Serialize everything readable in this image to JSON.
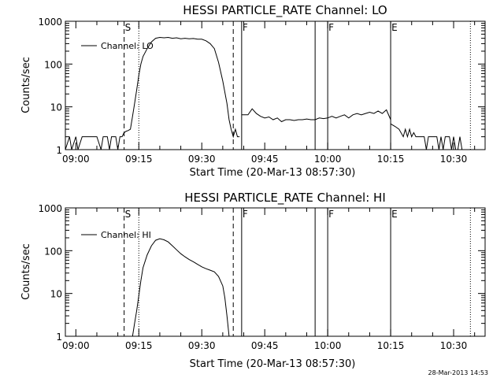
{
  "footer": {
    "timestamp": "28-Mar-2013 14:53"
  },
  "chart_data": [
    {
      "type": "line",
      "title": "HESSI PARTICLE_RATE Channel: LO",
      "xlabel": "Start Time (20-Mar-13 08:57:30)",
      "ylabel": "Counts/sec",
      "y_scale": "log",
      "ylim": [
        1,
        1000
      ],
      "xlim": [
        "08:57:30",
        "10:37:30"
      ],
      "x_tick_labels": [
        "09:00",
        "09:15",
        "09:30",
        "09:45",
        "10:00",
        "10:15",
        "10:30"
      ],
      "y_tick_labels": [
        "1",
        "10",
        "100",
        "1000"
      ],
      "legend": {
        "position": "top-left",
        "entries": [
          "Channel: LO"
        ]
      },
      "markers": [
        {
          "label": "S",
          "time": "09:11:30",
          "style": "dashed"
        },
        {
          "label": "",
          "time": "09:15:00",
          "style": "dotted"
        },
        {
          "label": "",
          "time": "09:37:30",
          "style": "dashed"
        },
        {
          "label": "F",
          "time": "09:39:30",
          "style": "solid"
        },
        {
          "label": "",
          "time": "09:57:00",
          "style": "solid"
        },
        {
          "label": "F",
          "time": "10:00:00",
          "style": "solid"
        },
        {
          "label": "E",
          "time": "10:15:00",
          "style": "solid"
        },
        {
          "label": "",
          "time": "10:34:00",
          "style": "dotted"
        }
      ],
      "series": [
        {
          "name": "Channel: LO",
          "segments": [
            [
              [
                "08:57:30",
                1
              ],
              [
                "08:58:30",
                2
              ],
              [
                "08:59:00",
                1
              ],
              [
                "09:00:00",
                2
              ],
              [
                "09:00:30",
                1
              ],
              [
                "09:01:30",
                2
              ],
              [
                "09:02:00",
                2
              ],
              [
                "09:03:00",
                2
              ],
              [
                "09:04:00",
                2
              ],
              [
                "09:05:00",
                2
              ],
              [
                "09:06:00",
                1
              ],
              [
                "09:06:30",
                2
              ],
              [
                "09:07:30",
                2
              ],
              [
                "09:08:00",
                1
              ],
              [
                "09:08:30",
                2
              ],
              [
                "09:09:30",
                2
              ],
              [
                "09:10:00",
                1
              ],
              [
                "09:10:30",
                2
              ],
              [
                "09:11:00",
                2
              ],
              [
                "09:11:30",
                2.5
              ],
              [
                "09:12:00",
                2.7
              ],
              [
                "09:12:30",
                2.8
              ],
              [
                "09:13:00",
                3
              ],
              [
                "09:13:30",
                6
              ],
              [
                "09:14:00",
                12
              ],
              [
                "09:14:30",
                25
              ],
              [
                "09:15:00",
                55
              ],
              [
                "09:15:30",
                100
              ],
              [
                "09:16:00",
                150
              ],
              [
                "09:17:00",
                230
              ],
              [
                "09:18:00",
                330
              ],
              [
                "09:19:00",
                400
              ],
              [
                "09:20:00",
                420
              ],
              [
                "09:21:00",
                410
              ],
              [
                "09:22:00",
                420
              ],
              [
                "09:23:00",
                400
              ],
              [
                "09:24:00",
                410
              ],
              [
                "09:25:00",
                390
              ],
              [
                "09:26:00",
                400
              ],
              [
                "09:27:00",
                390
              ],
              [
                "09:28:00",
                395
              ],
              [
                "09:29:00",
                380
              ],
              [
                "09:30:00",
                380
              ],
              [
                "09:31:00",
                350
              ],
              [
                "09:32:00",
                300
              ],
              [
                "09:33:00",
                230
              ],
              [
                "09:34:00",
                110
              ],
              [
                "09:35:00",
                40
              ],
              [
                "09:36:00",
                12
              ],
              [
                "09:36:30",
                5
              ],
              [
                "09:37:00",
                3
              ],
              [
                "09:37:30",
                2
              ],
              [
                "09:38:00",
                3
              ],
              [
                "09:38:30",
                2
              ],
              [
                "09:39:00",
                2
              ]
            ],
            [
              [
                "09:39:30",
                6.5
              ],
              [
                "09:41:00",
                6.5
              ],
              [
                "09:42:00",
                9
              ],
              [
                "09:43:00",
                7
              ],
              [
                "09:44:00",
                6
              ],
              [
                "09:45:00",
                5.5
              ],
              [
                "09:46:00",
                5.8
              ],
              [
                "09:47:00",
                5
              ],
              [
                "09:48:00",
                5.5
              ],
              [
                "09:49:00",
                4.5
              ],
              [
                "09:50:00",
                5
              ],
              [
                "09:51:00",
                5
              ],
              [
                "09:52:00",
                4.8
              ],
              [
                "09:53:00",
                5
              ],
              [
                "09:54:00",
                5
              ],
              [
                "09:55:00",
                5.2
              ],
              [
                "09:56:00",
                5
              ],
              [
                "09:57:00",
                5
              ],
              [
                "09:58:00",
                5.5
              ],
              [
                "09:59:00",
                5.3
              ],
              [
                "10:00:00",
                5.5
              ],
              [
                "10:01:00",
                6
              ],
              [
                "10:02:00",
                5.5
              ],
              [
                "10:03:00",
                6
              ],
              [
                "10:04:00",
                6.5
              ],
              [
                "10:05:00",
                5.5
              ],
              [
                "10:06:00",
                6.5
              ],
              [
                "10:07:00",
                7
              ],
              [
                "10:08:00",
                6.5
              ],
              [
                "10:09:00",
                7
              ],
              [
                "10:10:00",
                7.5
              ],
              [
                "10:11:00",
                7
              ],
              [
                "10:12:00",
                8
              ],
              [
                "10:13:00",
                7
              ],
              [
                "10:14:00",
                8.5
              ],
              [
                "10:15:00",
                5
              ]
            ],
            [
              [
                "10:15:00",
                4
              ],
              [
                "10:16:00",
                3.5
              ],
              [
                "10:17:00",
                3
              ],
              [
                "10:18:00",
                2
              ],
              [
                "10:18:30",
                3
              ],
              [
                "10:19:00",
                2
              ],
              [
                "10:19:30",
                3
              ],
              [
                "10:20:00",
                2
              ],
              [
                "10:20:30",
                2.5
              ],
              [
                "10:21:00",
                2
              ],
              [
                "10:22:00",
                2
              ],
              [
                "10:23:00",
                2
              ],
              [
                "10:23:30",
                1
              ],
              [
                "10:24:00",
                2
              ],
              [
                "10:25:00",
                2
              ],
              [
                "10:26:00",
                2
              ],
              [
                "10:26:30",
                1
              ],
              [
                "10:27:00",
                2
              ],
              [
                "10:27:30",
                1
              ],
              [
                "10:28:00",
                2
              ],
              [
                "10:29:00",
                2
              ],
              [
                "10:29:30",
                1
              ],
              [
                "10:30:00",
                2
              ],
              [
                "10:30:30",
                1
              ],
              [
                "10:31:00",
                1
              ],
              [
                "10:31:30",
                2
              ],
              [
                "10:32:00",
                1
              ],
              [
                "10:33:00",
                1
              ]
            ]
          ]
        }
      ]
    },
    {
      "type": "line",
      "title": "HESSI PARTICLE_RATE Channel: HI",
      "xlabel": "Start Time (20-Mar-13 08:57:30)",
      "ylabel": "Counts/sec",
      "y_scale": "log",
      "ylim": [
        1,
        1000
      ],
      "xlim": [
        "08:57:30",
        "10:37:30"
      ],
      "x_tick_labels": [
        "09:00",
        "09:15",
        "09:30",
        "09:45",
        "10:00",
        "10:15",
        "10:30"
      ],
      "y_tick_labels": [
        "1",
        "10",
        "100",
        "1000"
      ],
      "legend": {
        "position": "top-left",
        "entries": [
          "Channel: HI"
        ]
      },
      "markers": [
        {
          "label": "S",
          "time": "09:11:30",
          "style": "dashed"
        },
        {
          "label": "",
          "time": "09:15:00",
          "style": "dotted"
        },
        {
          "label": "",
          "time": "09:37:30",
          "style": "dashed"
        },
        {
          "label": "F",
          "time": "09:39:30",
          "style": "solid"
        },
        {
          "label": "",
          "time": "09:57:00",
          "style": "solid"
        },
        {
          "label": "F",
          "time": "10:00:00",
          "style": "solid"
        },
        {
          "label": "E",
          "time": "10:15:00",
          "style": "solid"
        },
        {
          "label": "",
          "time": "10:34:00",
          "style": "dotted"
        }
      ],
      "series": [
        {
          "name": "Channel: HI",
          "segments": [
            [
              [
                "09:13:30",
                1
              ],
              [
                "09:14:00",
                2
              ],
              [
                "09:14:30",
                4
              ],
              [
                "09:15:00",
                9
              ],
              [
                "09:15:30",
                20
              ],
              [
                "09:16:00",
                40
              ],
              [
                "09:17:00",
                80
              ],
              [
                "09:18:00",
                130
              ],
              [
                "09:19:00",
                175
              ],
              [
                "09:20:00",
                190
              ],
              [
                "09:21:00",
                180
              ],
              [
                "09:22:00",
                160
              ],
              [
                "09:23:00",
                130
              ],
              [
                "09:24:00",
                105
              ],
              [
                "09:25:00",
                85
              ],
              [
                "09:26:00",
                72
              ],
              [
                "09:27:00",
                62
              ],
              [
                "09:28:00",
                55
              ],
              [
                "09:29:00",
                48
              ],
              [
                "09:30:00",
                42
              ],
              [
                "09:31:00",
                38
              ],
              [
                "09:32:00",
                35
              ],
              [
                "09:33:00",
                32
              ],
              [
                "09:34:00",
                25
              ],
              [
                "09:35:00",
                15
              ],
              [
                "09:35:30",
                8
              ],
              [
                "09:36:00",
                3
              ],
              [
                "09:36:30",
                1
              ]
            ]
          ]
        }
      ]
    }
  ]
}
